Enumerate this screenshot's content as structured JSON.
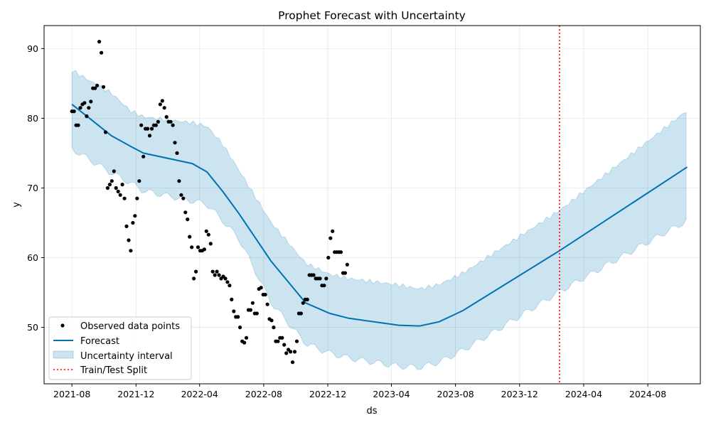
{
  "chart_data": {
    "type": "line",
    "title": "Prophet Forecast with Uncertainty",
    "xlabel": "ds",
    "ylabel": "y",
    "xlim": [
      "2021-06-09",
      "2024-11-09"
    ],
    "ylim": [
      41.9,
      93.3
    ],
    "x_ticks": [
      "2021-08",
      "2021-12",
      "2022-04",
      "2022-08",
      "2022-12",
      "2023-04",
      "2023-08",
      "2023-12",
      "2024-04",
      "2024-08"
    ],
    "y_ticks": [
      50,
      60,
      70,
      80,
      90
    ],
    "grid": true,
    "legend_position": "lower-left",
    "legend": [
      "Observed data points",
      "Forecast",
      "Uncertainty interval",
      "Train/Test Split"
    ],
    "colors": {
      "observed": "#000000",
      "forecast": "#0072b2",
      "uncertainty": "#0072b2",
      "split": "#ff0000"
    },
    "split_date": "2024-02-15",
    "observed": [
      [
        "2021-08-01",
        81.0
      ],
      [
        "2021-08-05",
        81.0
      ],
      [
        "2021-08-09",
        79.0
      ],
      [
        "2021-08-13",
        79.0
      ],
      [
        "2021-08-17",
        81.5
      ],
      [
        "2021-08-21",
        82.0
      ],
      [
        "2021-08-25",
        82.2
      ],
      [
        "2021-08-29",
        80.3
      ],
      [
        "2021-09-02",
        81.5
      ],
      [
        "2021-09-06",
        82.4
      ],
      [
        "2021-09-10",
        84.3
      ],
      [
        "2021-09-14",
        84.3
      ],
      [
        "2021-09-18",
        84.7
      ],
      [
        "2021-09-22",
        91.0
      ],
      [
        "2021-09-26",
        89.4
      ],
      [
        "2021-09-30",
        84.5
      ],
      [
        "2021-10-04",
        78.0
      ],
      [
        "2021-10-08",
        70.0
      ],
      [
        "2021-10-12",
        70.5
      ],
      [
        "2021-10-16",
        71.0
      ],
      [
        "2021-10-20",
        72.4
      ],
      [
        "2021-10-24",
        70.0
      ],
      [
        "2021-10-28",
        69.5
      ],
      [
        "2021-11-01",
        69.0
      ],
      [
        "2021-11-05",
        70.5
      ],
      [
        "2021-11-09",
        68.5
      ],
      [
        "2021-11-13",
        64.5
      ],
      [
        "2021-11-17",
        62.5
      ],
      [
        "2021-11-21",
        61.0
      ],
      [
        "2021-11-25",
        65.0
      ],
      [
        "2021-11-29",
        66.0
      ],
      [
        "2021-12-03",
        68.5
      ],
      [
        "2021-12-07",
        71.0
      ],
      [
        "2021-12-11",
        79.0
      ],
      [
        "2021-12-15",
        74.5
      ],
      [
        "2021-12-19",
        78.5
      ],
      [
        "2021-12-23",
        78.5
      ],
      [
        "2021-12-27",
        77.5
      ],
      [
        "2021-12-31",
        78.5
      ],
      [
        "2022-01-04",
        79.0
      ],
      [
        "2022-01-08",
        79.0
      ],
      [
        "2022-01-12",
        79.5
      ],
      [
        "2022-01-16",
        82.0
      ],
      [
        "2022-01-20",
        82.5
      ],
      [
        "2022-01-24",
        81.5
      ],
      [
        "2022-01-28",
        80.2
      ],
      [
        "2022-02-01",
        79.5
      ],
      [
        "2022-02-05",
        79.5
      ],
      [
        "2022-02-09",
        79.0
      ],
      [
        "2022-02-13",
        76.5
      ],
      [
        "2022-02-17",
        75.0
      ],
      [
        "2022-02-21",
        71.0
      ],
      [
        "2022-02-25",
        69.0
      ],
      [
        "2022-03-01",
        68.5
      ],
      [
        "2022-03-05",
        66.5
      ],
      [
        "2022-03-09",
        65.5
      ],
      [
        "2022-03-13",
        63.0
      ],
      [
        "2022-03-17",
        61.5
      ],
      [
        "2022-03-21",
        57.0
      ],
      [
        "2022-03-25",
        58.0
      ],
      [
        "2022-03-29",
        61.5
      ],
      [
        "2022-04-02",
        61.0
      ],
      [
        "2022-04-06",
        61.0
      ],
      [
        "2022-04-10",
        61.2
      ],
      [
        "2022-04-14",
        63.8
      ],
      [
        "2022-04-18",
        63.3
      ],
      [
        "2022-04-22",
        62.0
      ],
      [
        "2022-04-26",
        58.0
      ],
      [
        "2022-04-30",
        57.5
      ],
      [
        "2022-05-04",
        58.0
      ],
      [
        "2022-05-08",
        57.5
      ],
      [
        "2022-05-12",
        57.0
      ],
      [
        "2022-05-16",
        57.3
      ],
      [
        "2022-05-20",
        57.0
      ],
      [
        "2022-05-24",
        56.5
      ],
      [
        "2022-05-28",
        56.0
      ],
      [
        "2022-06-01",
        54.0
      ],
      [
        "2022-06-05",
        52.3
      ],
      [
        "2022-06-09",
        51.5
      ],
      [
        "2022-06-13",
        51.5
      ],
      [
        "2022-06-17",
        50.0
      ],
      [
        "2022-06-21",
        48.0
      ],
      [
        "2022-06-25",
        47.8
      ],
      [
        "2022-06-29",
        48.5
      ],
      [
        "2022-07-03",
        52.5
      ],
      [
        "2022-07-07",
        52.5
      ],
      [
        "2022-07-11",
        53.5
      ],
      [
        "2022-07-15",
        52.0
      ],
      [
        "2022-07-19",
        52.0
      ],
      [
        "2022-07-23",
        55.5
      ],
      [
        "2022-07-27",
        55.7
      ],
      [
        "2022-07-31",
        54.7
      ],
      [
        "2022-08-04",
        54.7
      ],
      [
        "2022-08-08",
        53.3
      ],
      [
        "2022-08-12",
        51.2
      ],
      [
        "2022-08-16",
        51.0
      ],
      [
        "2022-08-20",
        50.0
      ],
      [
        "2022-08-24",
        48.0
      ],
      [
        "2022-08-28",
        48.0
      ],
      [
        "2022-09-01",
        48.5
      ],
      [
        "2022-09-05",
        48.5
      ],
      [
        "2022-09-09",
        47.5
      ],
      [
        "2022-09-13",
        46.3
      ],
      [
        "2022-09-17",
        46.8
      ],
      [
        "2022-09-21",
        46.5
      ],
      [
        "2022-09-25",
        45.0
      ],
      [
        "2022-09-29",
        46.5
      ],
      [
        "2022-10-03",
        48.0
      ],
      [
        "2022-10-07",
        52.0
      ],
      [
        "2022-10-11",
        52.0
      ],
      [
        "2022-10-15",
        53.5
      ],
      [
        "2022-10-19",
        54.0
      ],
      [
        "2022-10-23",
        54.0
      ],
      [
        "2022-10-27",
        57.5
      ],
      [
        "2022-10-31",
        57.5
      ],
      [
        "2022-11-04",
        57.5
      ],
      [
        "2022-11-08",
        57.0
      ],
      [
        "2022-11-12",
        57.0
      ],
      [
        "2022-11-16",
        57.0
      ],
      [
        "2022-11-20",
        56.0
      ],
      [
        "2022-11-24",
        56.0
      ],
      [
        "2022-11-28",
        57.0
      ],
      [
        "2022-12-02",
        60.0
      ],
      [
        "2022-12-06",
        62.8
      ],
      [
        "2022-12-10",
        63.8
      ],
      [
        "2022-12-14",
        60.8
      ],
      [
        "2022-12-18",
        60.8
      ],
      [
        "2022-12-22",
        60.8
      ],
      [
        "2022-12-26",
        60.8
      ],
      [
        "2022-12-30",
        57.8
      ],
      [
        "2023-01-03",
        57.8
      ],
      [
        "2023-01-07",
        59.0
      ]
    ],
    "forecast": [
      [
        "2021-08-01",
        82.0
      ],
      [
        "2021-10-15",
        77.5
      ],
      [
        "2021-11-20",
        76.0
      ],
      [
        "2021-12-15",
        75.0
      ],
      [
        "2022-03-18",
        73.5
      ],
      [
        "2022-04-15",
        72.3
      ],
      [
        "2022-05-15",
        69.5
      ],
      [
        "2022-06-15",
        66.3
      ],
      [
        "2022-08-15",
        59.5
      ],
      [
        "2022-10-20",
        53.5
      ],
      [
        "2022-12-05",
        52.0
      ],
      [
        "2023-01-10",
        51.3
      ],
      [
        "2023-04-15",
        50.3
      ],
      [
        "2023-05-25",
        50.2
      ],
      [
        "2023-07-01",
        50.8
      ],
      [
        "2023-08-15",
        52.4
      ],
      [
        "2024-02-15",
        61.0
      ],
      [
        "2024-10-15",
        73.0
      ]
    ],
    "uncertainty": {
      "x": [
        "2021-08-01",
        "2021-10-15",
        "2021-11-20",
        "2021-12-15",
        "2022-03-18",
        "2022-04-15",
        "2022-05-15",
        "2022-06-15",
        "2022-08-15",
        "2022-10-20",
        "2022-12-05",
        "2023-01-10",
        "2023-04-15",
        "2023-05-25",
        "2023-07-01",
        "2023-08-15",
        "2024-02-15",
        "2024-10-15"
      ],
      "lower": [
        75.8,
        72.2,
        70.7,
        69.5,
        67.9,
        67.4,
        65.0,
        62.4,
        53.3,
        47.5,
        46.2,
        45.6,
        44.6,
        44.5,
        45.3,
        47.0,
        55.2,
        65.0
      ],
      "upper": [
        87.2,
        84.0,
        81.5,
        80.6,
        79.8,
        79.3,
        76.7,
        73.0,
        65.5,
        59.6,
        58.0,
        57.4,
        56.4,
        55.8,
        56.4,
        58.0,
        66.8,
        80.9
      ]
    }
  }
}
